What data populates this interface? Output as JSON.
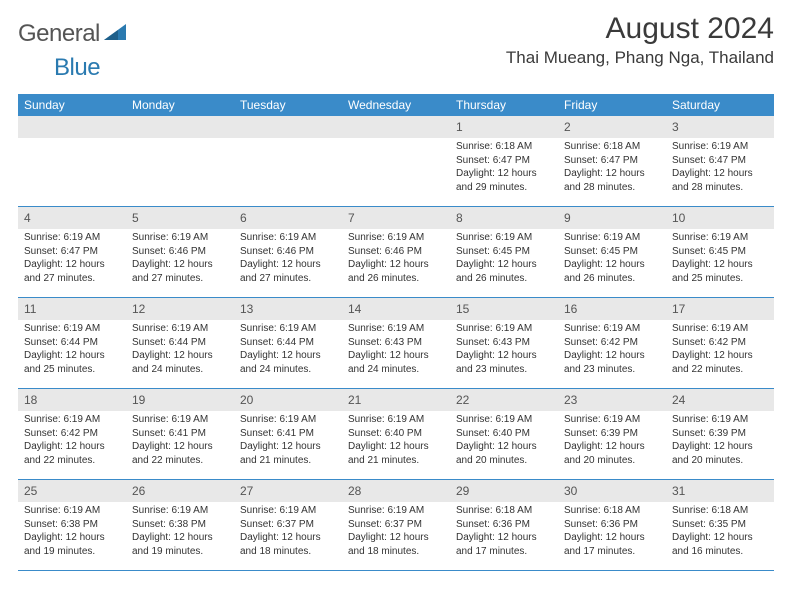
{
  "logo": {
    "general": "General",
    "blue": "Blue"
  },
  "title": "August 2024",
  "subtitle": "Thai Mueang, Phang Nga, Thailand",
  "colors": {
    "header_bg": "#3a8bc9",
    "header_text": "#ffffff",
    "daynum_bg": "#e8e8e8",
    "text": "#333333",
    "rule": "#3a8bc9",
    "logo_blue": "#2a7ab0",
    "logo_gray": "#555555"
  },
  "weekdays": [
    "Sunday",
    "Monday",
    "Tuesday",
    "Wednesday",
    "Thursday",
    "Friday",
    "Saturday"
  ],
  "weeks": [
    [
      {
        "n": "",
        "sr": "",
        "ss": "",
        "d1": "",
        "d2": ""
      },
      {
        "n": "",
        "sr": "",
        "ss": "",
        "d1": "",
        "d2": ""
      },
      {
        "n": "",
        "sr": "",
        "ss": "",
        "d1": "",
        "d2": ""
      },
      {
        "n": "",
        "sr": "",
        "ss": "",
        "d1": "",
        "d2": ""
      },
      {
        "n": "1",
        "sr": "Sunrise: 6:18 AM",
        "ss": "Sunset: 6:47 PM",
        "d1": "Daylight: 12 hours",
        "d2": "and 29 minutes."
      },
      {
        "n": "2",
        "sr": "Sunrise: 6:18 AM",
        "ss": "Sunset: 6:47 PM",
        "d1": "Daylight: 12 hours",
        "d2": "and 28 minutes."
      },
      {
        "n": "3",
        "sr": "Sunrise: 6:19 AM",
        "ss": "Sunset: 6:47 PM",
        "d1": "Daylight: 12 hours",
        "d2": "and 28 minutes."
      }
    ],
    [
      {
        "n": "4",
        "sr": "Sunrise: 6:19 AM",
        "ss": "Sunset: 6:47 PM",
        "d1": "Daylight: 12 hours",
        "d2": "and 27 minutes."
      },
      {
        "n": "5",
        "sr": "Sunrise: 6:19 AM",
        "ss": "Sunset: 6:46 PM",
        "d1": "Daylight: 12 hours",
        "d2": "and 27 minutes."
      },
      {
        "n": "6",
        "sr": "Sunrise: 6:19 AM",
        "ss": "Sunset: 6:46 PM",
        "d1": "Daylight: 12 hours",
        "d2": "and 27 minutes."
      },
      {
        "n": "7",
        "sr": "Sunrise: 6:19 AM",
        "ss": "Sunset: 6:46 PM",
        "d1": "Daylight: 12 hours",
        "d2": "and 26 minutes."
      },
      {
        "n": "8",
        "sr": "Sunrise: 6:19 AM",
        "ss": "Sunset: 6:45 PM",
        "d1": "Daylight: 12 hours",
        "d2": "and 26 minutes."
      },
      {
        "n": "9",
        "sr": "Sunrise: 6:19 AM",
        "ss": "Sunset: 6:45 PM",
        "d1": "Daylight: 12 hours",
        "d2": "and 26 minutes."
      },
      {
        "n": "10",
        "sr": "Sunrise: 6:19 AM",
        "ss": "Sunset: 6:45 PM",
        "d1": "Daylight: 12 hours",
        "d2": "and 25 minutes."
      }
    ],
    [
      {
        "n": "11",
        "sr": "Sunrise: 6:19 AM",
        "ss": "Sunset: 6:44 PM",
        "d1": "Daylight: 12 hours",
        "d2": "and 25 minutes."
      },
      {
        "n": "12",
        "sr": "Sunrise: 6:19 AM",
        "ss": "Sunset: 6:44 PM",
        "d1": "Daylight: 12 hours",
        "d2": "and 24 minutes."
      },
      {
        "n": "13",
        "sr": "Sunrise: 6:19 AM",
        "ss": "Sunset: 6:44 PM",
        "d1": "Daylight: 12 hours",
        "d2": "and 24 minutes."
      },
      {
        "n": "14",
        "sr": "Sunrise: 6:19 AM",
        "ss": "Sunset: 6:43 PM",
        "d1": "Daylight: 12 hours",
        "d2": "and 24 minutes."
      },
      {
        "n": "15",
        "sr": "Sunrise: 6:19 AM",
        "ss": "Sunset: 6:43 PM",
        "d1": "Daylight: 12 hours",
        "d2": "and 23 minutes."
      },
      {
        "n": "16",
        "sr": "Sunrise: 6:19 AM",
        "ss": "Sunset: 6:42 PM",
        "d1": "Daylight: 12 hours",
        "d2": "and 23 minutes."
      },
      {
        "n": "17",
        "sr": "Sunrise: 6:19 AM",
        "ss": "Sunset: 6:42 PM",
        "d1": "Daylight: 12 hours",
        "d2": "and 22 minutes."
      }
    ],
    [
      {
        "n": "18",
        "sr": "Sunrise: 6:19 AM",
        "ss": "Sunset: 6:42 PM",
        "d1": "Daylight: 12 hours",
        "d2": "and 22 minutes."
      },
      {
        "n": "19",
        "sr": "Sunrise: 6:19 AM",
        "ss": "Sunset: 6:41 PM",
        "d1": "Daylight: 12 hours",
        "d2": "and 22 minutes."
      },
      {
        "n": "20",
        "sr": "Sunrise: 6:19 AM",
        "ss": "Sunset: 6:41 PM",
        "d1": "Daylight: 12 hours",
        "d2": "and 21 minutes."
      },
      {
        "n": "21",
        "sr": "Sunrise: 6:19 AM",
        "ss": "Sunset: 6:40 PM",
        "d1": "Daylight: 12 hours",
        "d2": "and 21 minutes."
      },
      {
        "n": "22",
        "sr": "Sunrise: 6:19 AM",
        "ss": "Sunset: 6:40 PM",
        "d1": "Daylight: 12 hours",
        "d2": "and 20 minutes."
      },
      {
        "n": "23",
        "sr": "Sunrise: 6:19 AM",
        "ss": "Sunset: 6:39 PM",
        "d1": "Daylight: 12 hours",
        "d2": "and 20 minutes."
      },
      {
        "n": "24",
        "sr": "Sunrise: 6:19 AM",
        "ss": "Sunset: 6:39 PM",
        "d1": "Daylight: 12 hours",
        "d2": "and 20 minutes."
      }
    ],
    [
      {
        "n": "25",
        "sr": "Sunrise: 6:19 AM",
        "ss": "Sunset: 6:38 PM",
        "d1": "Daylight: 12 hours",
        "d2": "and 19 minutes."
      },
      {
        "n": "26",
        "sr": "Sunrise: 6:19 AM",
        "ss": "Sunset: 6:38 PM",
        "d1": "Daylight: 12 hours",
        "d2": "and 19 minutes."
      },
      {
        "n": "27",
        "sr": "Sunrise: 6:19 AM",
        "ss": "Sunset: 6:37 PM",
        "d1": "Daylight: 12 hours",
        "d2": "and 18 minutes."
      },
      {
        "n": "28",
        "sr": "Sunrise: 6:19 AM",
        "ss": "Sunset: 6:37 PM",
        "d1": "Daylight: 12 hours",
        "d2": "and 18 minutes."
      },
      {
        "n": "29",
        "sr": "Sunrise: 6:18 AM",
        "ss": "Sunset: 6:36 PM",
        "d1": "Daylight: 12 hours",
        "d2": "and 17 minutes."
      },
      {
        "n": "30",
        "sr": "Sunrise: 6:18 AM",
        "ss": "Sunset: 6:36 PM",
        "d1": "Daylight: 12 hours",
        "d2": "and 17 minutes."
      },
      {
        "n": "31",
        "sr": "Sunrise: 6:18 AM",
        "ss": "Sunset: 6:35 PM",
        "d1": "Daylight: 12 hours",
        "d2": "and 16 minutes."
      }
    ]
  ]
}
